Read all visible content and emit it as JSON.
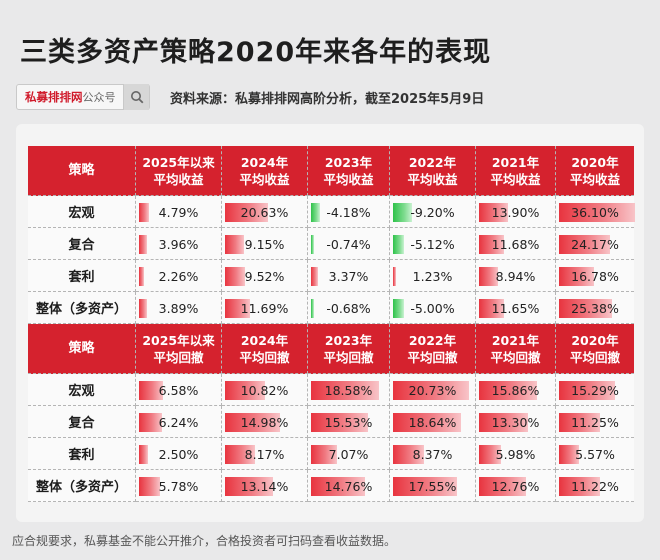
{
  "title": "三类多资产策略2020年来各年的表现",
  "search": {
    "brand": "私募排排网",
    "suffix": "公众号"
  },
  "source": "资料来源：私募排排网高阶分析，截至2025年5月9日",
  "footer": "应合规要求，私募基金不能公开推介，合格投资者可扫码查看收益数据。",
  "returns_header": {
    "corner": "策略",
    "columns": [
      [
        "2025年以来",
        "平均收益"
      ],
      [
        "2024年",
        "平均收益"
      ],
      [
        "2023年",
        "平均收益"
      ],
      [
        "2022年",
        "平均收益"
      ],
      [
        "2021年",
        "平均收益"
      ],
      [
        "2020年",
        "平均收益"
      ]
    ]
  },
  "returns_rows": [
    {
      "label": "宏观",
      "cells": [
        {
          "text": "4.79%",
          "v": 4.79
        },
        {
          "text": "20.63%",
          "v": 20.63
        },
        {
          "text": "-4.18%",
          "v": -4.18
        },
        {
          "text": "-9.20%",
          "v": -9.2
        },
        {
          "text": "13.90%",
          "v": 13.9
        },
        {
          "text": "36.10%",
          "v": 36.1
        }
      ]
    },
    {
      "label": "复合",
      "cells": [
        {
          "text": "3.96%",
          "v": 3.96
        },
        {
          "text": "9.15%",
          "v": 9.15
        },
        {
          "text": "-0.74%",
          "v": -0.74
        },
        {
          "text": "-5.12%",
          "v": -5.12
        },
        {
          "text": "11.68%",
          "v": 11.68
        },
        {
          "text": "24.17%",
          "v": 24.17
        }
      ]
    },
    {
      "label": "套利",
      "cells": [
        {
          "text": "2.26%",
          "v": 2.26
        },
        {
          "text": "9.52%",
          "v": 9.52
        },
        {
          "text": "3.37%",
          "v": 3.37
        },
        {
          "text": "1.23%",
          "v": 1.23
        },
        {
          "text": "8.94%",
          "v": 8.94
        },
        {
          "text": "16.78%",
          "v": 16.78
        }
      ]
    },
    {
      "label": "整体（多资产）",
      "cells": [
        {
          "text": "3.89%",
          "v": 3.89
        },
        {
          "text": "11.69%",
          "v": 11.69
        },
        {
          "text": "-0.68%",
          "v": -0.68
        },
        {
          "text": "-5.00%",
          "v": -5.0
        },
        {
          "text": "11.65%",
          "v": 11.65
        },
        {
          "text": "25.38%",
          "v": 25.38
        }
      ]
    }
  ],
  "drawdown_header": {
    "corner": "策略",
    "columns": [
      [
        "2025年以来",
        "平均回撤"
      ],
      [
        "2024年",
        "平均回撤"
      ],
      [
        "2023年",
        "平均回撤"
      ],
      [
        "2022年",
        "平均回撤"
      ],
      [
        "2021年",
        "平均回撤"
      ],
      [
        "2020年",
        "平均回撤"
      ]
    ]
  },
  "drawdown_rows": [
    {
      "label": "宏观",
      "cells": [
        {
          "text": "6.58%",
          "v": 6.58
        },
        {
          "text": "10.82%",
          "v": 10.82
        },
        {
          "text": "18.58%",
          "v": 18.58
        },
        {
          "text": "20.73%",
          "v": 20.73
        },
        {
          "text": "15.86%",
          "v": 15.86
        },
        {
          "text": "15.29%",
          "v": 15.29
        }
      ]
    },
    {
      "label": "复合",
      "cells": [
        {
          "text": "6.24%",
          "v": 6.24
        },
        {
          "text": "14.98%",
          "v": 14.98
        },
        {
          "text": "15.53%",
          "v": 15.53
        },
        {
          "text": "18.64%",
          "v": 18.64
        },
        {
          "text": "13.30%",
          "v": 13.3
        },
        {
          "text": "11.25%",
          "v": 11.25
        }
      ]
    },
    {
      "label": "套利",
      "cells": [
        {
          "text": "2.50%",
          "v": 2.5
        },
        {
          "text": "8.17%",
          "v": 8.17
        },
        {
          "text": "7.07%",
          "v": 7.07
        },
        {
          "text": "8.37%",
          "v": 8.37
        },
        {
          "text": "5.98%",
          "v": 5.98
        },
        {
          "text": "5.57%",
          "v": 5.57
        }
      ]
    },
    {
      "label": "整体（多资产）",
      "cells": [
        {
          "text": "5.78%",
          "v": 5.78
        },
        {
          "text": "13.14%",
          "v": 13.14
        },
        {
          "text": "14.76%",
          "v": 14.76
        },
        {
          "text": "17.55%",
          "v": 17.55
        },
        {
          "text": "12.76%",
          "v": 12.76
        },
        {
          "text": "11.22%",
          "v": 11.22
        }
      ]
    }
  ],
  "icons": {
    "search": "search-icon"
  },
  "colors": {
    "header": "#d5222e",
    "positive": "#e8343f",
    "negative": "#2ec24a"
  }
}
